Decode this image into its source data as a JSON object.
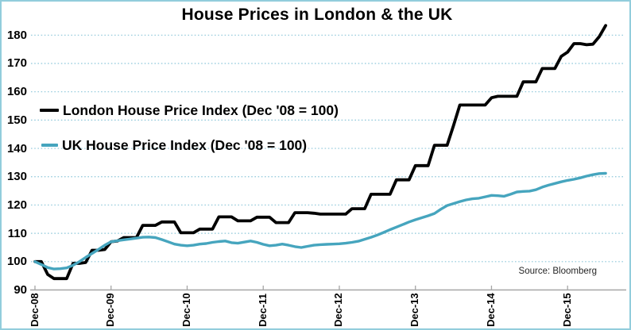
{
  "title": "House Prices in London & the UK",
  "source_note": "Source: Bloomberg",
  "legend": [
    {
      "label": "London House Price Index (Dec '08 = 100)",
      "color": "#000000"
    },
    {
      "label": "UK House Price Index (Dec '08 = 100)",
      "color": "#46A5BE"
    }
  ],
  "colors": {
    "gridline": "#8FC8DA",
    "axis_line": "#A6A6A6",
    "frame_border": "#92CDDC",
    "london_series": "#000000",
    "uk_series": "#46A5BE"
  },
  "chart_data": {
    "type": "line",
    "title": "House Prices in London & the UK",
    "xlabel": "",
    "ylabel": "",
    "x_unit": "month",
    "x_start": "Dec-2008",
    "x_end": "Jun-2016",
    "x_tick_labels": [
      "Dec-08",
      "Dec-09",
      "Dec-10",
      "Dec-11",
      "Dec-12",
      "Dec-13",
      "Dec-14",
      "Dec-15"
    ],
    "x_tick_month_index": [
      0,
      12,
      24,
      36,
      48,
      60,
      72,
      84
    ],
    "y_ticks": [
      90,
      100,
      110,
      120,
      130,
      140,
      150,
      160,
      170,
      180
    ],
    "ylim": [
      90,
      185
    ],
    "grid": "horizontal dotted",
    "legend_position": "inside upper-left",
    "series": [
      {
        "name": "London House Price Index (Dec '08 = 100)",
        "color": "#000000",
        "line_width": 3.8,
        "values": [
          100,
          100,
          95.5,
          94,
          94,
          94,
          99.4,
          99.4,
          99.7,
          104,
          104,
          104.3,
          107,
          107.3,
          108.5,
          108.5,
          108.5,
          112.8,
          112.8,
          112.8,
          114.0,
          114.0,
          114.0,
          110.2,
          110.2,
          110.2,
          111.5,
          111.5,
          111.5,
          115.8,
          115.8,
          115.8,
          114.4,
          114.4,
          114.4,
          115.7,
          115.7,
          115.7,
          113.8,
          113.8,
          113.8,
          117.3,
          117.3,
          117.3,
          117.1,
          116.8,
          116.8,
          116.8,
          116.8,
          116.8,
          118.7,
          118.7,
          118.7,
          123.8,
          123.8,
          123.8,
          123.8,
          128.9,
          128.9,
          128.9,
          133.9,
          133.9,
          133.9,
          141.1,
          141.1,
          141.1,
          148.0,
          155.3,
          155.3,
          155.3,
          155.3,
          155.3,
          157.9,
          158.4,
          158.4,
          158.4,
          158.4,
          163.5,
          163.5,
          163.5,
          168.2,
          168.2,
          168.2,
          172.5,
          174.0,
          177.0,
          177.0,
          176.6,
          176.8,
          179.5,
          183.4
        ]
      },
      {
        "name": "UK House Price Index (Dec '08 = 100)",
        "color": "#46A5BE",
        "line_width": 3.4,
        "values": [
          100,
          99.0,
          97.9,
          97.4,
          97.5,
          97.8,
          98.7,
          100.0,
          101.5,
          102.9,
          104.3,
          105.8,
          107.0,
          107.4,
          107.7,
          108.0,
          108.3,
          108.6,
          108.7,
          108.5,
          107.8,
          107.0,
          106.2,
          105.8,
          105.6,
          105.8,
          106.2,
          106.4,
          106.8,
          107.1,
          107.3,
          106.7,
          106.5,
          106.9,
          107.3,
          106.8,
          106.1,
          105.6,
          105.8,
          106.2,
          105.8,
          105.3,
          105.0,
          105.4,
          105.8,
          106.0,
          106.1,
          106.2,
          106.3,
          106.5,
          106.8,
          107.2,
          107.9,
          108.6,
          109.4,
          110.3,
          111.3,
          112.2,
          113.1,
          114.0,
          114.8,
          115.5,
          116.2,
          117.0,
          118.5,
          119.8,
          120.5,
          121.2,
          121.8,
          122.2,
          122.4,
          122.9,
          123.4,
          123.3,
          123.1,
          123.8,
          124.6,
          124.8,
          124.9,
          125.4,
          126.3,
          127.0,
          127.6,
          128.2,
          128.7,
          129.1,
          129.6,
          130.2,
          130.7,
          131.1,
          131.2
        ]
      }
    ]
  }
}
